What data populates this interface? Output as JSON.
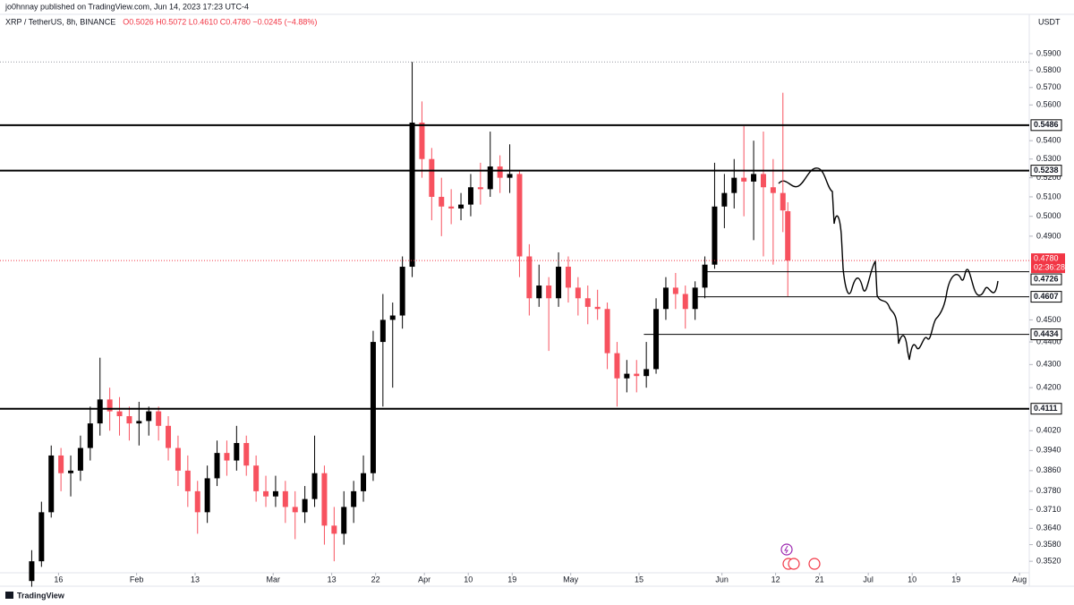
{
  "header": {
    "byline": "jo0hnnay published on TradingView.com, Jun 14, 2023 17:23 UTC-4",
    "footer": "TradingView"
  },
  "chart_data": {
    "type": "candlestick",
    "title": "XRP / TetherUS, 8h, BINANCE",
    "ohlc_text": "O0.5026 H0.5072 L0.4610 C0.4780 −0.0245 (−4.88%)",
    "currency": "USDT",
    "up_color": "#000000",
    "down_color": "#f7525f",
    "log_scale": true,
    "grid": false,
    "x": [
      "01-10",
      "01-12",
      "01-14",
      "01-16",
      "01-18",
      "01-20",
      "01-22",
      "01-24",
      "01-26",
      "01-28",
      "01-30",
      "02-01",
      "02-03",
      "02-05",
      "02-07",
      "02-09",
      "02-11",
      "02-13",
      "02-15",
      "02-17",
      "02-19",
      "02-21",
      "02-23",
      "02-25",
      "02-27",
      "03-01",
      "03-03",
      "03-05",
      "03-07",
      "03-09",
      "03-11",
      "03-13",
      "03-15",
      "03-17",
      "03-19",
      "03-21",
      "03-23",
      "03-25",
      "03-27",
      "03-29",
      "03-31",
      "04-02",
      "04-04",
      "04-06",
      "04-08",
      "04-10",
      "04-12",
      "04-14",
      "04-16",
      "04-18",
      "04-20",
      "04-22",
      "04-24",
      "04-26",
      "04-28",
      "04-30",
      "05-02",
      "05-04",
      "05-06",
      "05-08",
      "05-10",
      "05-12",
      "05-14",
      "05-16",
      "05-18",
      "05-20",
      "05-22",
      "05-24",
      "05-26",
      "05-28",
      "05-30",
      "06-01",
      "06-03",
      "06-05",
      "06-07",
      "06-09",
      "06-11",
      "06-13",
      "06-14"
    ],
    "open": [
      0.345,
      0.352,
      0.37,
      0.392,
      0.385,
      0.386,
      0.395,
      0.405,
      0.415,
      0.41,
      0.408,
      0.405,
      0.406,
      0.41,
      0.404,
      0.395,
      0.386,
      0.378,
      0.37,
      0.383,
      0.393,
      0.39,
      0.397,
      0.388,
      0.378,
      0.376,
      0.378,
      0.372,
      0.37,
      0.375,
      0.385,
      0.365,
      0.362,
      0.372,
      0.378,
      0.385,
      0.44,
      0.45,
      0.452,
      0.475,
      0.55,
      0.53,
      0.51,
      0.505,
      0.504,
      0.506,
      0.515,
      0.514,
      0.526,
      0.52,
      0.522,
      0.48,
      0.46,
      0.466,
      0.46,
      0.475,
      0.465,
      0.46,
      0.456,
      0.455,
      0.435,
      0.424,
      0.426,
      0.425,
      0.428,
      0.455,
      0.465,
      0.462,
      0.455,
      0.465,
      0.476,
      0.505,
      0.512,
      0.52,
      0.518,
      0.522,
      0.515,
      0.512,
      0.5026
    ],
    "high": [
      0.356,
      0.374,
      0.396,
      0.395,
      0.392,
      0.4,
      0.412,
      0.433,
      0.42,
      0.416,
      0.412,
      0.414,
      0.412,
      0.412,
      0.408,
      0.4,
      0.392,
      0.382,
      0.388,
      0.398,
      0.398,
      0.404,
      0.4,
      0.392,
      0.384,
      0.384,
      0.382,
      0.378,
      0.38,
      0.4,
      0.388,
      0.372,
      0.378,
      0.382,
      0.392,
      0.445,
      0.462,
      0.458,
      0.48,
      0.585,
      0.562,
      0.536,
      0.52,
      0.514,
      0.512,
      0.522,
      0.528,
      0.545,
      0.532,
      0.538,
      0.524,
      0.486,
      0.476,
      0.47,
      0.482,
      0.48,
      0.47,
      0.466,
      0.464,
      0.458,
      0.44,
      0.432,
      0.432,
      0.44,
      0.46,
      0.47,
      0.472,
      0.466,
      0.468,
      0.48,
      0.528,
      0.522,
      0.53,
      0.548,
      0.54,
      0.545,
      0.53,
      0.567,
      0.5072
    ],
    "low": [
      0.343,
      0.35,
      0.368,
      0.378,
      0.376,
      0.382,
      0.39,
      0.4,
      0.402,
      0.4,
      0.398,
      0.396,
      0.4,
      0.398,
      0.39,
      0.38,
      0.372,
      0.362,
      0.366,
      0.38,
      0.384,
      0.386,
      0.384,
      0.374,
      0.372,
      0.372,
      0.366,
      0.36,
      0.366,
      0.372,
      0.358,
      0.352,
      0.358,
      0.366,
      0.374,
      0.382,
      0.412,
      0.42,
      0.446,
      0.47,
      0.52,
      0.498,
      0.49,
      0.496,
      0.498,
      0.5,
      0.506,
      0.51,
      0.512,
      0.512,
      0.47,
      0.452,
      0.456,
      0.436,
      0.456,
      0.458,
      0.452,
      0.448,
      0.45,
      0.428,
      0.412,
      0.418,
      0.418,
      0.42,
      0.426,
      0.45,
      0.455,
      0.446,
      0.45,
      0.46,
      0.474,
      0.494,
      0.504,
      0.5,
      0.488,
      0.48,
      0.476,
      0.492,
      0.461
    ],
    "close": [
      0.352,
      0.37,
      0.392,
      0.385,
      0.386,
      0.395,
      0.405,
      0.415,
      0.41,
      0.408,
      0.405,
      0.406,
      0.41,
      0.404,
      0.395,
      0.386,
      0.378,
      0.37,
      0.383,
      0.393,
      0.39,
      0.397,
      0.388,
      0.378,
      0.376,
      0.378,
      0.372,
      0.37,
      0.375,
      0.385,
      0.365,
      0.362,
      0.372,
      0.378,
      0.385,
      0.44,
      0.45,
      0.452,
      0.475,
      0.55,
      0.53,
      0.51,
      0.505,
      0.504,
      0.506,
      0.515,
      0.514,
      0.526,
      0.52,
      0.522,
      0.48,
      0.46,
      0.466,
      0.46,
      0.475,
      0.465,
      0.46,
      0.456,
      0.455,
      0.435,
      0.424,
      0.426,
      0.425,
      0.428,
      0.455,
      0.465,
      0.462,
      0.455,
      0.465,
      0.476,
      0.505,
      0.512,
      0.52,
      0.518,
      0.522,
      0.515,
      0.512,
      0.503,
      0.478
    ],
    "xlim": [
      "01-04",
      "08-03"
    ],
    "xticks": [
      {
        "value": "01-16",
        "label": "16"
      },
      {
        "value": "02-01",
        "label": "Feb"
      },
      {
        "value": "02-13",
        "label": "13"
      },
      {
        "value": "03-01",
        "label": "Mar"
      },
      {
        "value": "03-13",
        "label": "13"
      },
      {
        "value": "03-22",
        "label": "22"
      },
      {
        "value": "04-01",
        "label": "Apr"
      },
      {
        "value": "04-10",
        "label": "10"
      },
      {
        "value": "04-19",
        "label": "19"
      },
      {
        "value": "05-01",
        "label": "May"
      },
      {
        "value": "05-15",
        "label": "15"
      },
      {
        "value": "06-01",
        "label": "Jun"
      },
      {
        "value": "06-12",
        "label": "12"
      },
      {
        "value": "06-21",
        "label": "21"
      },
      {
        "value": "07-01",
        "label": "Jul"
      },
      {
        "value": "07-10",
        "label": "10"
      },
      {
        "value": "07-19",
        "label": "19"
      },
      {
        "value": "08-01",
        "label": "Aug"
      }
    ],
    "ylim": [
      0.3479,
      0.6063
    ],
    "yticks": [
      {
        "value": 0.59,
        "label": "0.5900"
      },
      {
        "value": 0.58,
        "label": "0.5800"
      },
      {
        "value": 0.57,
        "label": "0.5700"
      },
      {
        "value": 0.56,
        "label": "0.5600"
      },
      {
        "value": 0.54,
        "label": "0.5400"
      },
      {
        "value": 0.53,
        "label": "0.5300"
      },
      {
        "value": 0.52,
        "label": "0.5200"
      },
      {
        "value": 0.51,
        "label": "0.5100"
      },
      {
        "value": 0.5,
        "label": "0.5000"
      },
      {
        "value": 0.49,
        "label": "0.4900"
      },
      {
        "value": 0.45,
        "label": "0.4500"
      },
      {
        "value": 0.44,
        "label": "0.4400"
      },
      {
        "value": 0.43,
        "label": "0.4300"
      },
      {
        "value": 0.42,
        "label": "0.4200"
      },
      {
        "value": 0.402,
        "label": "0.4020"
      },
      {
        "value": 0.394,
        "label": "0.3940"
      },
      {
        "value": 0.386,
        "label": "0.3860"
      },
      {
        "value": 0.378,
        "label": "0.3780"
      },
      {
        "value": 0.371,
        "label": "0.3710"
      },
      {
        "value": 0.364,
        "label": "0.3640"
      },
      {
        "value": 0.358,
        "label": "0.3580"
      },
      {
        "value": 0.352,
        "label": "0.3520"
      }
    ],
    "levels": [
      {
        "value": 0.5486,
        "from": "01-04",
        "thick": true
      },
      {
        "value": 0.5238,
        "from": "01-04",
        "thick": true
      },
      {
        "value": 0.4726,
        "from": "05-28",
        "thick": false
      },
      {
        "value": 0.4607,
        "from": "05-26",
        "thick": false
      },
      {
        "value": 0.4434,
        "from": "05-16",
        "thick": false
      },
      {
        "value": 0.4111,
        "from": "01-04",
        "thick": true
      }
    ],
    "last_price": {
      "value": 0.478,
      "label": "0.4780",
      "countdown": "02:36:28",
      "color": "#f23645"
    }
  }
}
